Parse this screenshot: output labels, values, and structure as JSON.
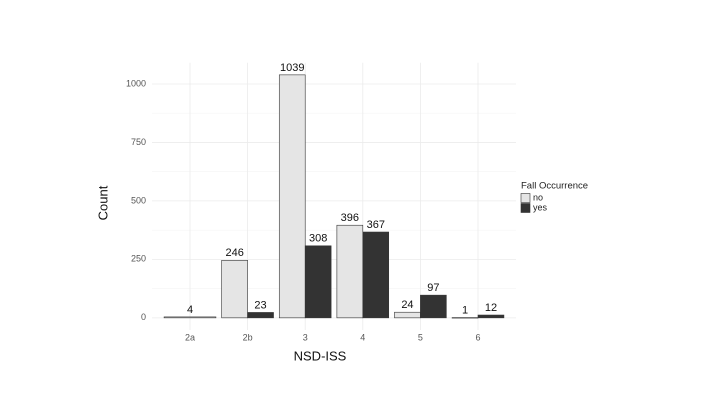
{
  "chart_data": {
    "type": "bar",
    "x_label": "NSD-ISS",
    "y_label": "Count",
    "legend_title": "Fall Occurrence",
    "categories": [
      "2a",
      "2b",
      "3",
      "4",
      "5",
      "6"
    ],
    "series": [
      {
        "name": "no",
        "color": "#e5e5e5",
        "values": [
          4,
          246,
          1039,
          396,
          24,
          1
        ]
      },
      {
        "name": "yes",
        "color": "#333333",
        "values": [
          null,
          23,
          308,
          367,
          97,
          12
        ]
      }
    ],
    "ylim": [
      -52,
      1091
    ],
    "yticks": [
      0,
      250,
      500,
      750,
      1000
    ],
    "grid": true
  }
}
